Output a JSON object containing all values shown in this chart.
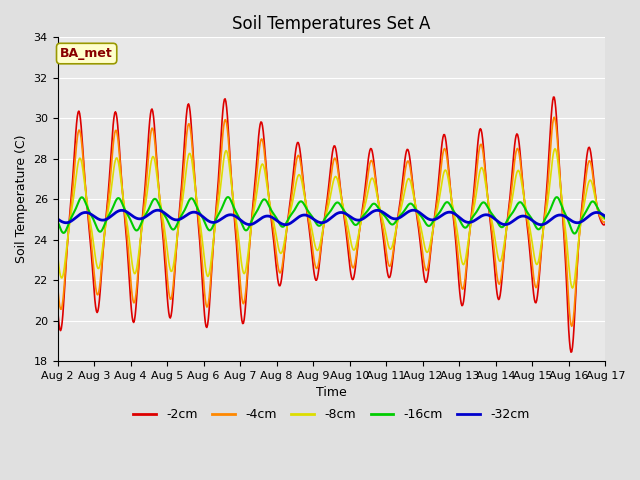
{
  "title": "Soil Temperatures Set A",
  "xlabel": "Time",
  "ylabel": "Soil Temperature (C)",
  "annotation": "BA_met",
  "ylim": [
    18,
    34
  ],
  "x_tick_labels": [
    "Aug 2",
    "Aug 3",
    "Aug 4",
    "Aug 5",
    "Aug 6",
    "Aug 7",
    "Aug 8",
    "Aug 9",
    "Aug 10",
    "Aug 11",
    "Aug 12",
    "Aug 13",
    "Aug 14",
    "Aug 15",
    "Aug 16",
    "Aug 17"
  ],
  "series_labels": [
    "-2cm",
    "-4cm",
    "-8cm",
    "-16cm",
    "-32cm"
  ],
  "series_colors": [
    "#dd0000",
    "#ff8800",
    "#dddd00",
    "#00cc00",
    "#0000cc"
  ],
  "series_linewidths": [
    1.2,
    1.2,
    1.2,
    1.5,
    2.0
  ],
  "plot_bg_color": "#e8e8e8",
  "grid_color": "#ffffff",
  "title_fontsize": 12,
  "axis_label_fontsize": 9,
  "tick_fontsize": 8,
  "legend_fontsize": 9,
  "peak_amps_2cm": [
    5.75,
    4.75,
    5.35,
    5.1,
    5.65,
    5.65,
    3.65,
    3.35,
    3.3,
    3.15,
    3.25,
    4.5,
    4.15,
    4.0,
    7.25,
    0.5
  ],
  "mean_temp": 25.25,
  "n_days": 15,
  "samples_per_day": 48
}
